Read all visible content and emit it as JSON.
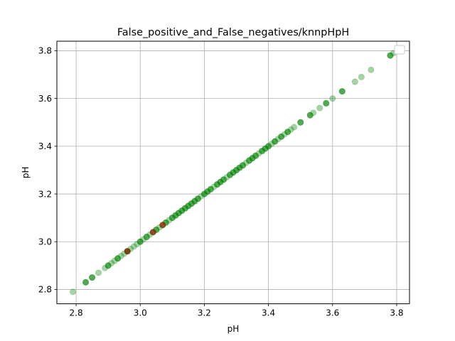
{
  "chart_data": {
    "type": "scatter",
    "title": "False_positive_and_False_negatives/knnpHpH",
    "xlabel": "pH",
    "ylabel": "pH",
    "xlim": [
      2.74,
      3.84
    ],
    "ylim": [
      2.74,
      3.84
    ],
    "xticks": [
      2.8,
      3.0,
      3.2,
      3.4,
      3.6,
      3.8
    ],
    "xtick_labels": [
      "2.8",
      "3.0",
      "3.2",
      "3.4",
      "3.6",
      "3.8"
    ],
    "yticks": [
      2.8,
      3.0,
      3.2,
      3.4,
      3.6,
      3.8
    ],
    "ytick_labels": [
      "2.8",
      "3.0",
      "3.2",
      "3.4",
      "3.6",
      "3.8"
    ],
    "grid": true,
    "legend": {
      "placement": "top-right",
      "entries": []
    },
    "colors": {
      "correct": "#008000",
      "false_marker": "#8b2500"
    },
    "series": [
      {
        "color": "#008000",
        "alpha": 0.35,
        "x": [
          2.79,
          2.83,
          2.85,
          2.87,
          2.89,
          2.9,
          2.91,
          2.92,
          2.93,
          2.94,
          2.95,
          2.96,
          2.97,
          2.98,
          2.99,
          3.0,
          3.01,
          3.02,
          3.03,
          3.04,
          3.05,
          3.06,
          3.07,
          3.08,
          3.09,
          3.1,
          3.11,
          3.12,
          3.13,
          3.14,
          3.15,
          3.16,
          3.17,
          3.18,
          3.19,
          3.2,
          3.21,
          3.22,
          3.23,
          3.24,
          3.25,
          3.26,
          3.27,
          3.28,
          3.29,
          3.3,
          3.31,
          3.32,
          3.33,
          3.34,
          3.35,
          3.36,
          3.37,
          3.38,
          3.39,
          3.4,
          3.41,
          3.42,
          3.43,
          3.44,
          3.45,
          3.46,
          3.47,
          3.48,
          3.5,
          3.53,
          3.54,
          3.56,
          3.58,
          3.6,
          3.63,
          3.67,
          3.69,
          3.72,
          3.78,
          3.79
        ],
        "y": [
          2.79,
          2.83,
          2.85,
          2.87,
          2.89,
          2.9,
          2.91,
          2.92,
          2.93,
          2.94,
          2.95,
          2.96,
          2.97,
          2.98,
          2.99,
          3.0,
          3.01,
          3.02,
          3.03,
          3.04,
          3.05,
          3.06,
          3.07,
          3.08,
          3.09,
          3.1,
          3.11,
          3.12,
          3.13,
          3.14,
          3.15,
          3.16,
          3.17,
          3.18,
          3.19,
          3.2,
          3.21,
          3.22,
          3.23,
          3.24,
          3.25,
          3.26,
          3.27,
          3.28,
          3.29,
          3.3,
          3.31,
          3.32,
          3.33,
          3.34,
          3.35,
          3.36,
          3.37,
          3.38,
          3.39,
          3.4,
          3.41,
          3.42,
          3.43,
          3.44,
          3.45,
          3.46,
          3.47,
          3.48,
          3.5,
          3.53,
          3.54,
          3.56,
          3.58,
          3.6,
          3.63,
          3.67,
          3.69,
          3.72,
          3.78,
          3.79
        ]
      },
      {
        "color": "#008000",
        "alpha": 0.5,
        "x": [
          2.83,
          2.85,
          2.9,
          2.93,
          2.96,
          3.0,
          3.02,
          3.05,
          3.08,
          3.1,
          3.11,
          3.12,
          3.13,
          3.14,
          3.15,
          3.16,
          3.17,
          3.18,
          3.2,
          3.21,
          3.22,
          3.24,
          3.25,
          3.26,
          3.28,
          3.29,
          3.3,
          3.31,
          3.32,
          3.34,
          3.35,
          3.36,
          3.38,
          3.39,
          3.4,
          3.42,
          3.44,
          3.46,
          3.5,
          3.53,
          3.58,
          3.63,
          3.78
        ],
        "y": [
          2.83,
          2.85,
          2.9,
          2.93,
          2.96,
          3.0,
          3.02,
          3.05,
          3.08,
          3.1,
          3.11,
          3.12,
          3.13,
          3.14,
          3.15,
          3.16,
          3.17,
          3.18,
          3.2,
          3.21,
          3.22,
          3.24,
          3.25,
          3.26,
          3.28,
          3.29,
          3.3,
          3.31,
          3.32,
          3.34,
          3.35,
          3.36,
          3.38,
          3.39,
          3.4,
          3.42,
          3.44,
          3.46,
          3.5,
          3.53,
          3.58,
          3.63,
          3.78
        ]
      },
      {
        "color": "#8b2500",
        "alpha": 0.75,
        "x": [
          2.96,
          3.04,
          3.07
        ],
        "y": [
          2.96,
          3.04,
          3.07
        ]
      }
    ]
  }
}
